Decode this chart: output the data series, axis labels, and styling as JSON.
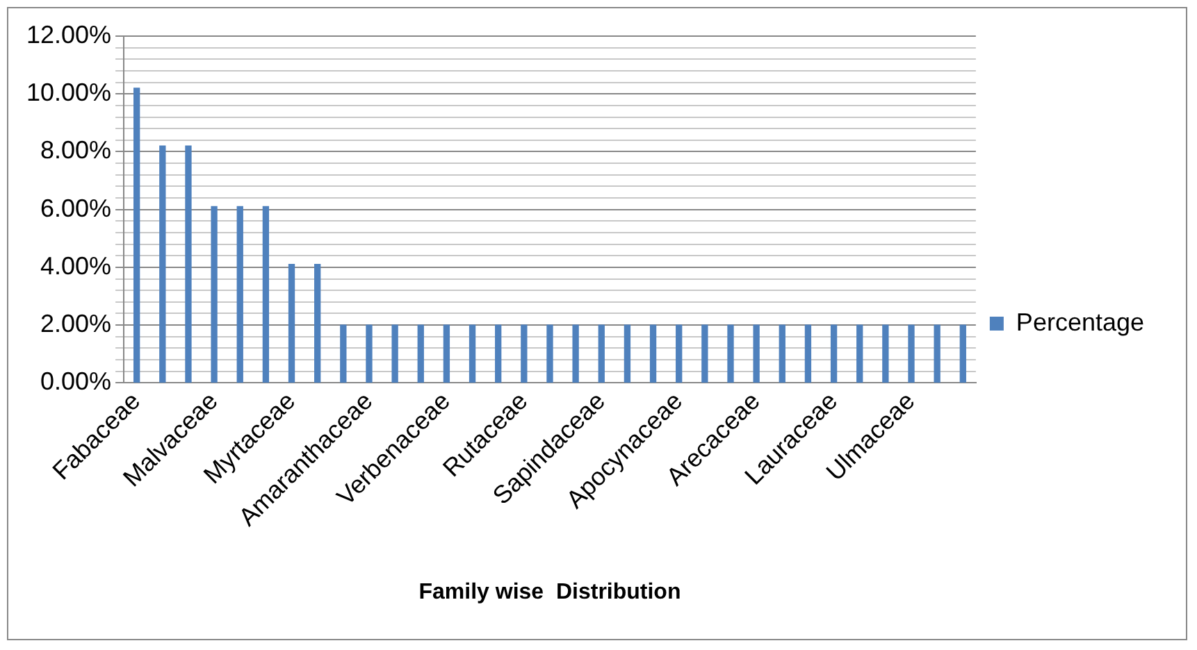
{
  "chart_data": {
    "type": "bar",
    "xlabel": "Family wise  Distribution",
    "categories": [
      "Fabaceae",
      null,
      null,
      "Malvaceae",
      null,
      null,
      "Myrtaceae",
      null,
      null,
      "Amaranthaceae",
      null,
      null,
      "Verbenaceae",
      null,
      null,
      "Rutaceae",
      null,
      null,
      "Sapindaceae",
      null,
      null,
      "Apocynaceae",
      null,
      null,
      "Arecaceae",
      null,
      null,
      "Lauraceae",
      null,
      null,
      "Ulmaceae",
      null,
      null
    ],
    "series": [
      {
        "name": "Percentage",
        "color": "#4f81bd",
        "values": [
          10.2,
          8.2,
          8.2,
          6.1,
          6.1,
          6.1,
          4.1,
          4.1,
          2.0,
          2.0,
          2.0,
          2.0,
          2.0,
          2.0,
          2.0,
          2.0,
          2.0,
          2.0,
          2.0,
          2.0,
          2.0,
          2.0,
          2.0,
          2.0,
          2.0,
          2.0,
          2.0,
          2.0,
          2.0,
          2.0,
          2.0,
          2.0,
          2.0
        ]
      }
    ],
    "ylim": [
      0,
      12
    ],
    "yticks": [
      {
        "value": 0,
        "label": "0.00%"
      },
      {
        "value": 0.4,
        "label": null
      },
      {
        "value": 0.8,
        "label": null
      },
      {
        "value": 1.2,
        "label": null
      },
      {
        "value": 1.6,
        "label": null
      },
      {
        "value": 2,
        "label": "2.00%"
      },
      {
        "value": 2.4,
        "label": null
      },
      {
        "value": 2.8,
        "label": null
      },
      {
        "value": 3.2,
        "label": null
      },
      {
        "value": 3.6,
        "label": null
      },
      {
        "value": 4,
        "label": "4.00%"
      },
      {
        "value": 4.4,
        "label": null
      },
      {
        "value": 4.8,
        "label": null
      },
      {
        "value": 5.2,
        "label": null
      },
      {
        "value": 5.6,
        "label": null
      },
      {
        "value": 6,
        "label": "6.00%"
      },
      {
        "value": 6.4,
        "label": null
      },
      {
        "value": 6.8,
        "label": null
      },
      {
        "value": 7.2,
        "label": null
      },
      {
        "value": 7.6,
        "label": null
      },
      {
        "value": 8,
        "label": "8.00%"
      },
      {
        "value": 8.4,
        "label": null
      },
      {
        "value": 8.8,
        "label": null
      },
      {
        "value": 9.2,
        "label": null
      },
      {
        "value": 9.6,
        "label": null
      },
      {
        "value": 10,
        "label": "10.00%"
      },
      {
        "value": 10.4,
        "label": null
      },
      {
        "value": 10.8,
        "label": null
      },
      {
        "value": 11.2,
        "label": null
      },
      {
        "value": 11.6,
        "label": null
      },
      {
        "value": 12,
        "label": "12.00%"
      }
    ],
    "grid": "y",
    "legend": "right"
  }
}
